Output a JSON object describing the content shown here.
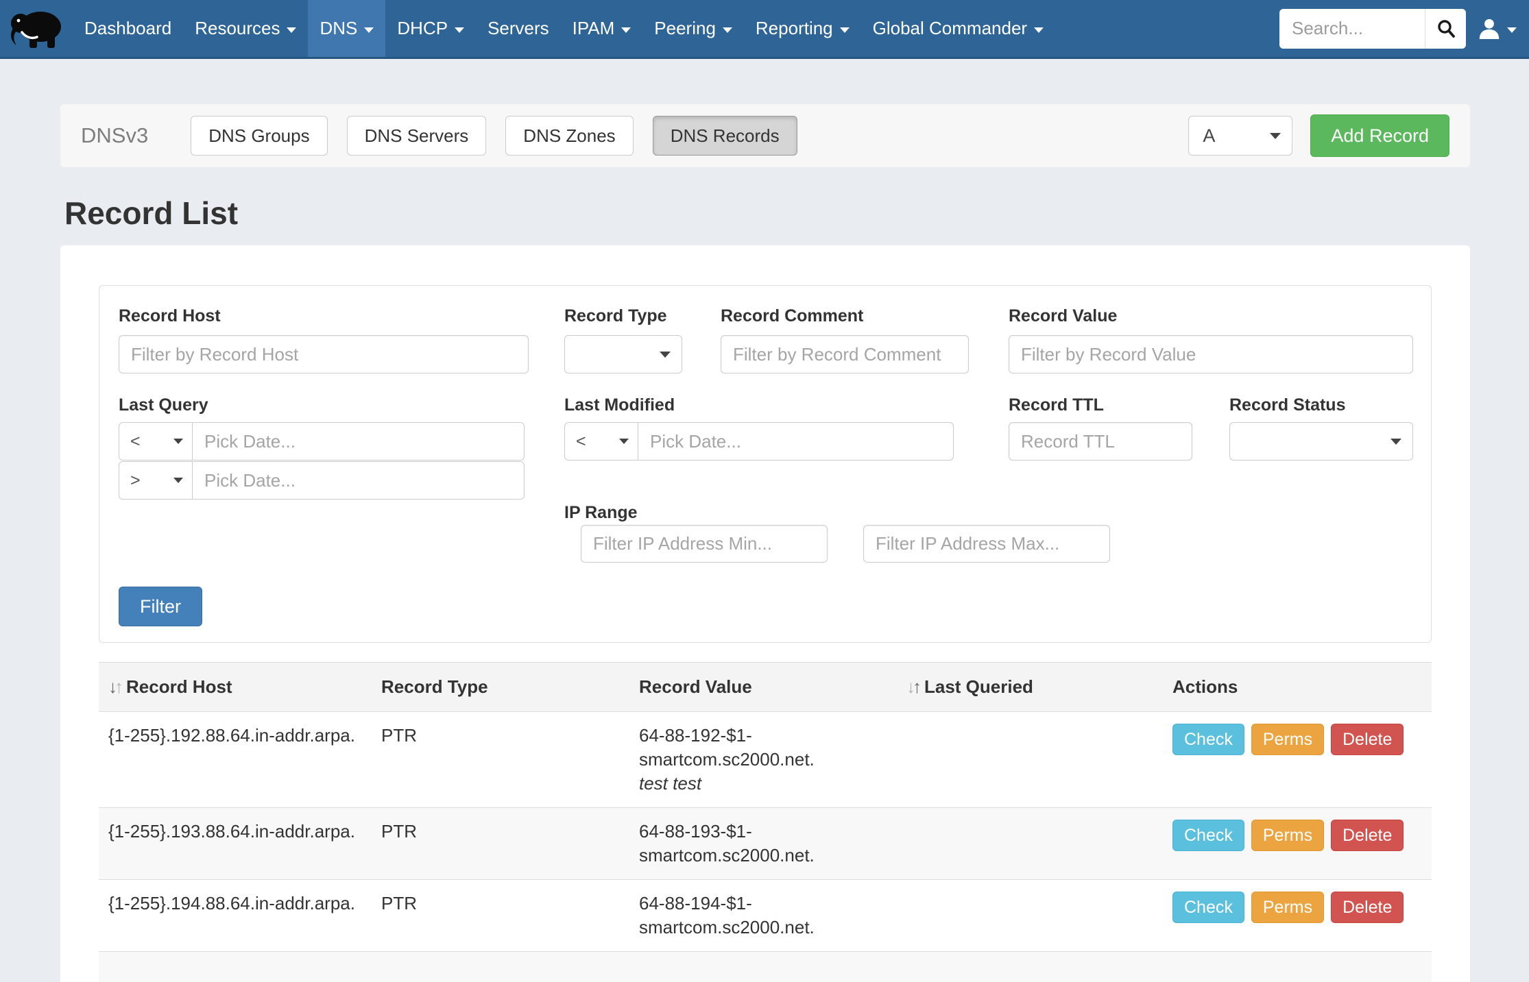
{
  "navbar": {
    "search_placeholder": "Search...",
    "items": [
      {
        "label": "Dashboard",
        "caret": false,
        "active": false
      },
      {
        "label": "Resources",
        "caret": true,
        "active": false
      },
      {
        "label": "DNS",
        "caret": true,
        "active": true
      },
      {
        "label": "DHCP",
        "caret": true,
        "active": false
      },
      {
        "label": "Servers",
        "caret": false,
        "active": false
      },
      {
        "label": "IPAM",
        "caret": true,
        "active": false
      },
      {
        "label": "Peering",
        "caret": true,
        "active": false
      },
      {
        "label": "Reporting",
        "caret": true,
        "active": false
      },
      {
        "label": "Global Commander",
        "caret": true,
        "active": false
      }
    ]
  },
  "subnav": {
    "title": "DNSv3",
    "tabs": [
      {
        "label": "DNS Groups",
        "active": false
      },
      {
        "label": "DNS Servers",
        "active": false
      },
      {
        "label": "DNS Zones",
        "active": false
      },
      {
        "label": "DNS Records",
        "active": true
      }
    ],
    "record_type_selected": "A",
    "add_button": "Add Record"
  },
  "page": {
    "title": "Record List"
  },
  "filters": {
    "record_host": {
      "label": "Record Host",
      "placeholder": "Filter by Record Host"
    },
    "record_type": {
      "label": "Record Type",
      "value": ""
    },
    "record_comment": {
      "label": "Record Comment",
      "placeholder": "Filter by Record Comment"
    },
    "record_value": {
      "label": "Record Value",
      "placeholder": "Filter by Record Value"
    },
    "last_query": {
      "label": "Last Query",
      "op1": "<",
      "op2": ">",
      "date_placeholder": "Pick Date..."
    },
    "last_modified": {
      "label": "Last Modified",
      "op": "<",
      "date_placeholder": "Pick Date..."
    },
    "record_ttl": {
      "label": "Record TTL",
      "placeholder": "Record TTL"
    },
    "record_status": {
      "label": "Record Status",
      "value": ""
    },
    "ip_range": {
      "label": "IP Range",
      "min_placeholder": "Filter IP Address Min...",
      "max_placeholder": "Filter IP Address Max..."
    },
    "submit_label": "Filter"
  },
  "table": {
    "headers": [
      {
        "label": "Record Host",
        "sort": "desc"
      },
      {
        "label": "Record Type",
        "sort": null
      },
      {
        "label": "Record Value",
        "sort": null
      },
      {
        "label": "Last Queried",
        "sort": "asc"
      },
      {
        "label": "Actions",
        "sort": null
      }
    ],
    "rows": [
      {
        "host": "{1-255}.192.88.64.in-addr.arpa.",
        "type": "PTR",
        "value": "64-88-192-$1-smartcom.sc2000.net.",
        "comment": "test test",
        "last_queried": "",
        "actions": [
          "Check",
          "Perms",
          "Delete"
        ]
      },
      {
        "host": "{1-255}.193.88.64.in-addr.arpa.",
        "type": "PTR",
        "value": "64-88-193-$1-smartcom.sc2000.net.",
        "comment": "",
        "last_queried": "",
        "actions": [
          "Check",
          "Perms",
          "Delete"
        ]
      },
      {
        "host": "{1-255}.194.88.64.in-addr.arpa.",
        "type": "PTR",
        "value": "64-88-194-$1-smartcom.sc2000.net.",
        "comment": "",
        "last_queried": "",
        "actions": [
          "Check",
          "Perms",
          "Delete"
        ]
      }
    ]
  },
  "colors": {
    "navbar": "#2e6496",
    "navbar_active": "#3f77ae",
    "page_bg": "#e9edf1",
    "add_button": "#5cb85c",
    "filter_button": "#4481ba",
    "check_button": "#5bc0de",
    "perms_button": "#eba440",
    "delete_button": "#d25450"
  }
}
